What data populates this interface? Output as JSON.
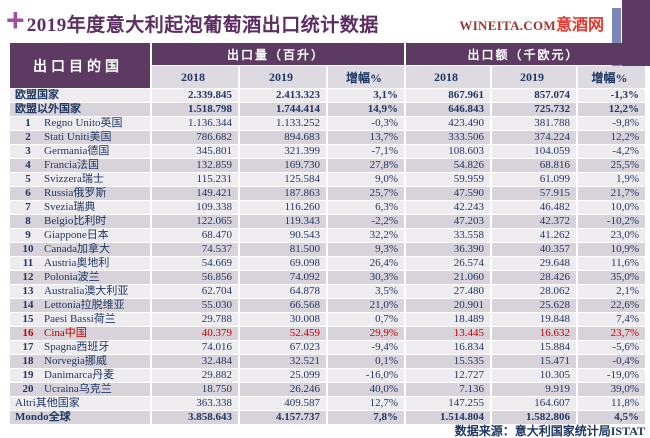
{
  "title": {
    "plus": "+",
    "text": "2019年度意大利起泡葡萄酒出口统计数据"
  },
  "logo": {
    "latin": "WINEITA.COM",
    "cn": "意酒网"
  },
  "colors": {
    "header_purple": "#5d3a62",
    "title_purple": "#5c2d62",
    "plus_magenta": "#a14d9e",
    "logo_maroon": "#9e3530",
    "logo_red": "#e8382d",
    "text_navy": "#1f3864",
    "highlight_red": "#c00000",
    "stripe_light": "#efecf0",
    "stripe_dark": "#d8d3da",
    "subheader_bg": "#dedae1",
    "deco_blue": "#7b87bb"
  },
  "table": {
    "dest_header": "出口目的国",
    "group_volume": "出口量（百升）",
    "group_value": "出口额（千欧元）",
    "sub_2018": "2018",
    "sub_2019": "2019",
    "sub_growth": "增幅%",
    "source": "数据来源：意大利国家统计局ISTAT"
  },
  "chart_data": {
    "type": "table",
    "title": "2019年度意大利起泡葡萄酒出口统计数据",
    "columns": [
      "出口目的国",
      "出口量2018(百升)",
      "出口量2019(百升)",
      "出口量增幅%",
      "出口额2018(千欧元)",
      "出口额2019(千欧元)",
      "出口额增幅%"
    ],
    "rows": [
      {
        "rank": "",
        "name": "欧盟国家",
        "cells": [
          "2.339.845",
          "2.413.323",
          "3,1%",
          "867.961",
          "857.074",
          "-1,3%"
        ],
        "bold": true
      },
      {
        "rank": "",
        "name": "欧盟以外国家",
        "cells": [
          "1.518.798",
          "1.744.414",
          "14,9%",
          "646.843",
          "725.732",
          "12,2%"
        ],
        "bold": true
      },
      {
        "rank": "1",
        "name": "Regno Unito英国",
        "cells": [
          "1.136.344",
          "1.133.252",
          "-0,3%",
          "423.490",
          "381.788",
          "-9,8%"
        ]
      },
      {
        "rank": "2",
        "name": "Stati Uniti美国",
        "cells": [
          "786.682",
          "894.683",
          "13,7%",
          "333.506",
          "374.224",
          "12,2%"
        ]
      },
      {
        "rank": "3",
        "name": "Germania德国",
        "cells": [
          "345.801",
          "321.399",
          "-7,1%",
          "108.603",
          "104.059",
          "-4,2%"
        ]
      },
      {
        "rank": "4",
        "name": "Francia法国",
        "cells": [
          "132.859",
          "169.730",
          "27,8%",
          "54.826",
          "68.816",
          "25,5%"
        ]
      },
      {
        "rank": "5",
        "name": "Svizzera瑞士",
        "cells": [
          "115.231",
          "125.584",
          "9,0%",
          "59.959",
          "61.099",
          "1,9%"
        ]
      },
      {
        "rank": "6",
        "name": "Russia俄罗斯",
        "cells": [
          "149.421",
          "187.863",
          "25,7%",
          "47.590",
          "57.915",
          "21,7%"
        ]
      },
      {
        "rank": "7",
        "name": "Svezia瑞典",
        "cells": [
          "109.338",
          "116.260",
          "6,3%",
          "42.243",
          "46.482",
          "10,0%"
        ]
      },
      {
        "rank": "8",
        "name": "Belgio比利时",
        "cells": [
          "122.065",
          "119.343",
          "-2,2%",
          "47.203",
          "42.372",
          "-10,2%"
        ]
      },
      {
        "rank": "9",
        "name": "Giappone日本",
        "cells": [
          "68.470",
          "90.543",
          "32,2%",
          "33.558",
          "41.262",
          "23,0%"
        ]
      },
      {
        "rank": "10",
        "name": "Canada加拿大",
        "cells": [
          "74.537",
          "81.500",
          "9,3%",
          "36.390",
          "40.357",
          "10,9%"
        ]
      },
      {
        "rank": "11",
        "name": "Austria奥地利",
        "cells": [
          "54.669",
          "69.098",
          "26,4%",
          "26.574",
          "29.648",
          "11,6%"
        ]
      },
      {
        "rank": "12",
        "name": "Polonia波兰",
        "cells": [
          "56.856",
          "74.092",
          "30,3%",
          "21.060",
          "28.426",
          "35,0%"
        ]
      },
      {
        "rank": "13",
        "name": "Australia澳大利亚",
        "cells": [
          "62.704",
          "64.878",
          "3,5%",
          "27.480",
          "28.062",
          "2,1%"
        ]
      },
      {
        "rank": "14",
        "name": "Lettonia拉脱维亚",
        "cells": [
          "55.030",
          "66.568",
          "21,0%",
          "20.901",
          "25.628",
          "22,6%"
        ]
      },
      {
        "rank": "15",
        "name": "Paesi Bassi荷兰",
        "cells": [
          "29.788",
          "30.008",
          "0,7%",
          "18.489",
          "19.848",
          "7,4%"
        ]
      },
      {
        "rank": "16",
        "name": "Cina中国",
        "cells": [
          "40.379",
          "52.459",
          "29,9%",
          "13.445",
          "16.632",
          "23,7%"
        ],
        "red": true
      },
      {
        "rank": "17",
        "name": "Spagna西班牙",
        "cells": [
          "74.016",
          "67.023",
          "-9,4%",
          "16.834",
          "15.884",
          "-5,6%"
        ]
      },
      {
        "rank": "18",
        "name": "Norvegia挪威",
        "cells": [
          "32.484",
          "32.521",
          "0,1%",
          "15.535",
          "15.471",
          "-0,4%"
        ]
      },
      {
        "rank": "19",
        "name": "Danimarca丹麦",
        "cells": [
          "29.882",
          "25.099",
          "-16,0%",
          "12.727",
          "10.305",
          "-19,0%"
        ]
      },
      {
        "rank": "20",
        "name": "Ucraina乌克兰",
        "cells": [
          "18.750",
          "26.246",
          "40,0%",
          "7.136",
          "9.919",
          "39,0%"
        ]
      },
      {
        "rank": "",
        "name": "Altri其他国家",
        "cells": [
          "363.338",
          "409.587",
          "12,7%",
          "147.255",
          "164.607",
          "11,8%"
        ]
      },
      {
        "rank": "",
        "name": "Mondo全球",
        "cells": [
          "3.858.643",
          "4.157.737",
          "7,8%",
          "1.514.804",
          "1.582.806",
          "4,5%"
        ],
        "bold": true
      }
    ]
  }
}
